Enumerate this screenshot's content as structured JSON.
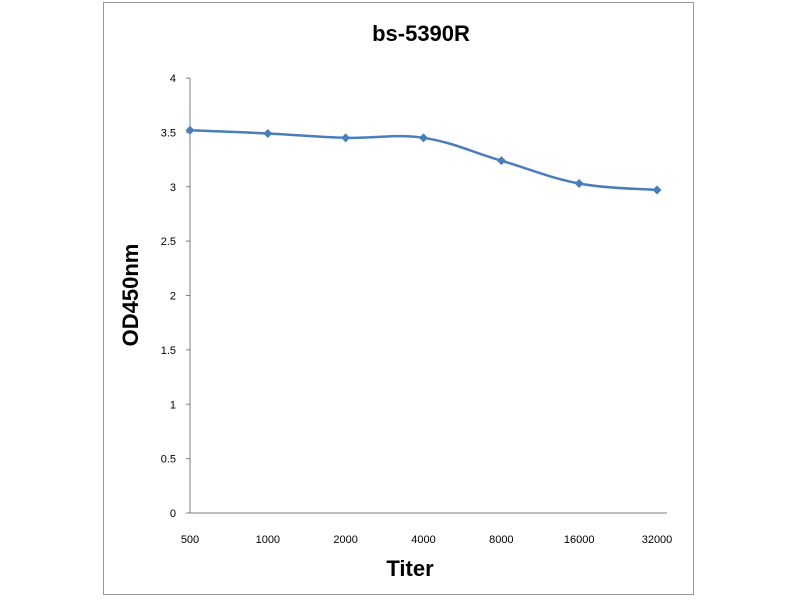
{
  "chart_data": {
    "type": "line",
    "title": "bs-5390R",
    "xlabel": "Titer",
    "ylabel": "OD450nm",
    "categories": [
      "500",
      "1000",
      "2000",
      "4000",
      "8000",
      "16000",
      "32000"
    ],
    "series": [
      {
        "values": [
          3.52,
          3.49,
          3.45,
          3.45,
          3.24,
          3.03,
          2.97
        ]
      }
    ],
    "yticks": [
      "0",
      "0.5",
      "1",
      "1.5",
      "2",
      "2.5",
      "3",
      "3.5",
      "4"
    ],
    "ylim": [
      0,
      4
    ],
    "grid": false,
    "legend": "none",
    "series_color": "#4a7ebb",
    "axis_color": "#7f7f7f"
  }
}
